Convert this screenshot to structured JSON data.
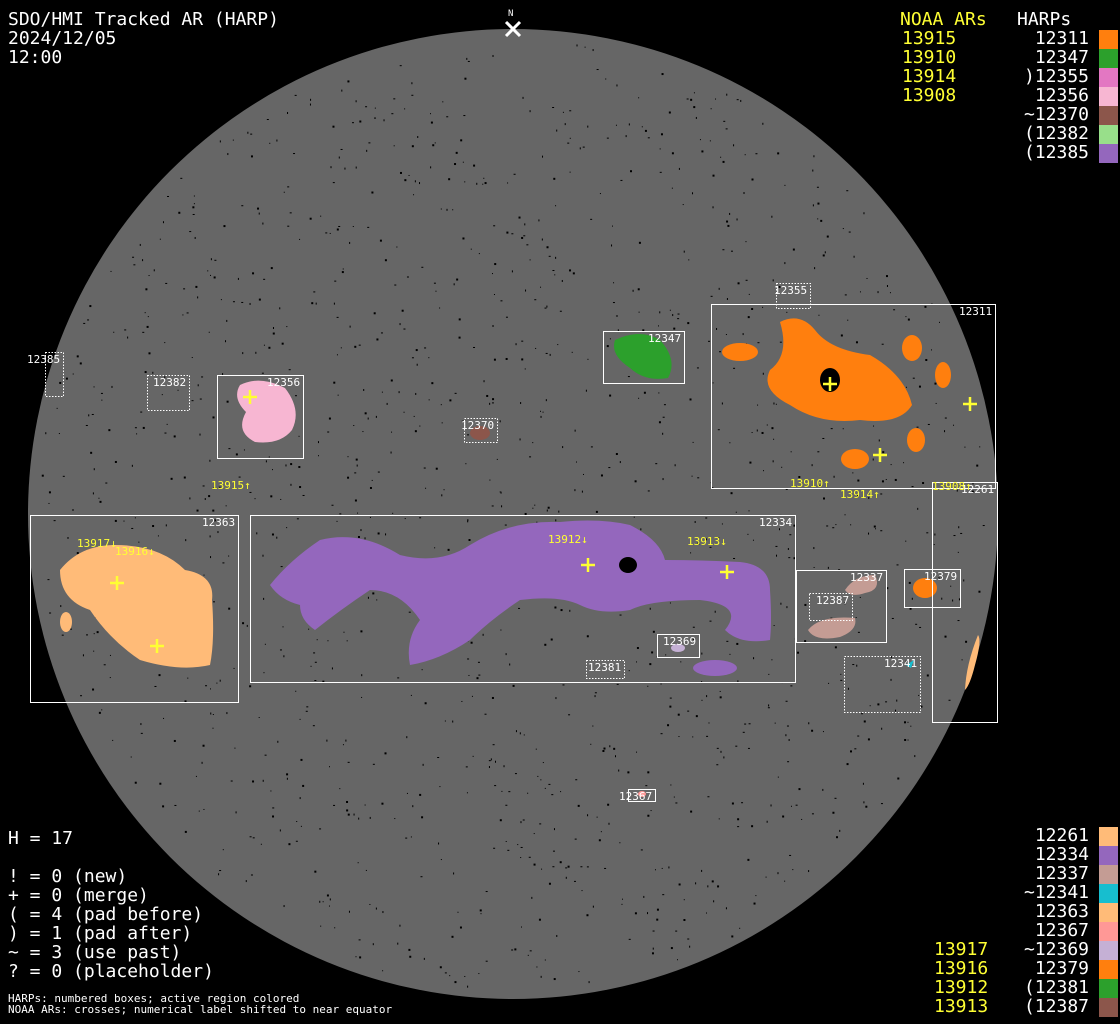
{
  "header": {
    "title": "SDO/HMI Tracked AR (HARP)",
    "date": "2024/12/05",
    "time": "12:00",
    "north_label": "N"
  },
  "top_legend": {
    "noaa_header": "NOAA ARs",
    "harp_header": "HARPs",
    "noaa": [
      "13915",
      "13910",
      "13914",
      "13908"
    ],
    "harps": [
      {
        "label": "12311",
        "color": "#ff7f0e"
      },
      {
        "label": "12347",
        "color": "#2ca02c"
      },
      {
        "label": ")12355",
        "color": "#e377c2"
      },
      {
        "label": "12356",
        "color": "#f7b6d2"
      },
      {
        "label": "~12370",
        "color": "#8c564b"
      },
      {
        "label": "(12382",
        "color": "#98df8a"
      },
      {
        "label": "(12385",
        "color": "#9467bd"
      }
    ]
  },
  "bottom_legend": {
    "noaa": [
      "13917",
      "13916",
      "13912",
      "13913"
    ],
    "harps": [
      {
        "label": "12261",
        "color": "#ffbb78"
      },
      {
        "label": "12334",
        "color": "#9467bd"
      },
      {
        "label": "12337",
        "color": "#c49c94"
      },
      {
        "label": "~12341",
        "color": "#17becf"
      },
      {
        "label": "12363",
        "color": "#ffbb78"
      },
      {
        "label": "12367",
        "color": "#ff9896"
      },
      {
        "label": "~12369",
        "color": "#c5b0d5"
      },
      {
        "label": "12379",
        "color": "#ff7f0e"
      },
      {
        "label": "(12381",
        "color": "#2ca02c"
      },
      {
        "label": "(12387",
        "color": "#8c564b"
      }
    ]
  },
  "stats": {
    "h_count": "H = 17",
    "lines": [
      "! = 0 (new)",
      "+ = 0 (merge)",
      "( = 4 (pad before)",
      ") = 1 (pad after)",
      "~ = 3 (use past)",
      "? = 0 (placeholder)"
    ]
  },
  "notes": [
    "HARPs: numbered boxes; active region colored",
    "NOAA ARs: crosses; numerical label shifted to near equator"
  ],
  "harp_boxes": [
    "12311",
    "12355",
    "12347",
    "12356",
    "12382",
    "12385",
    "12370",
    "12363",
    "12334",
    "12337",
    "12387",
    "12379",
    "12261",
    "12341",
    "12369",
    "12381",
    "12367"
  ],
  "noaa_labels": [
    "13915↑",
    "13910↑",
    "13914↑",
    "13908↑",
    "13917↓",
    "13916↓",
    "13912↓",
    "13913↓"
  ],
  "colors": {
    "disk": "#666666",
    "background": "#000000",
    "noaa": "#ffff33",
    "box": "#ffffff"
  }
}
